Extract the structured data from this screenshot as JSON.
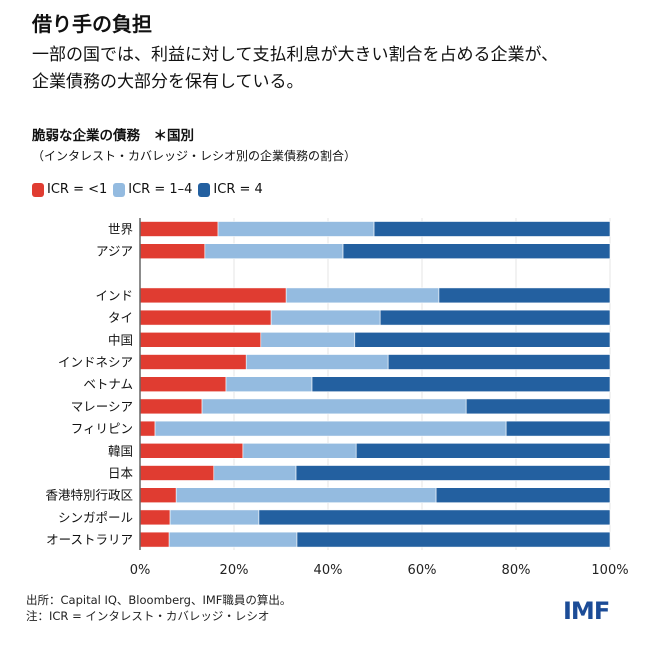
{
  "title": "借り手の負担",
  "subtitle_lines": [
    "一部の国では、利益に対して支払利息が大きい割合を占める企業が、",
    "企業債務の大部分を保有している。"
  ],
  "footer": {
    "source": "出所：Capital IQ、Bloomberg、IMF職員の算出。",
    "note": "注：ICR = インタレスト・カバレッジ・レシオ"
  },
  "logo_text": "IMF",
  "chart_data": {
    "type": "bar",
    "orientation": "horizontal",
    "stacked": true,
    "title": "脆弱な企業の債務　＊国別",
    "subtitle": "（インタレスト・カバレッジ・レシオ別の企業債務の割合）",
    "legend_position": "top-left",
    "grid": true,
    "xlim": [
      0,
      100
    ],
    "x_ticks": [
      "0%",
      "20%",
      "40%",
      "60%",
      "80%",
      "100%"
    ],
    "categories": [
      "世界",
      "アジア",
      "インド",
      "タイ",
      "中国",
      "インドネシア",
      "ベトナム",
      "マレーシア",
      "フィリピン",
      "韓国",
      "日本",
      "香港特別行政区",
      "シンガポール",
      "オーストラリア"
    ],
    "series": [
      {
        "name": "ICR = <1",
        "color": "#e03c31",
        "values": [
          16.6,
          13.8,
          31.1,
          27.9,
          25.7,
          22.6,
          18.3,
          13.2,
          3.2,
          21.9,
          15.7,
          7.7,
          6.4,
          6.2
        ]
      },
      {
        "name": "ICR = 1–4",
        "color": "#94bbe0",
        "values": [
          33.2,
          29.4,
          32.5,
          23.2,
          20.0,
          30.2,
          18.3,
          56.2,
          74.7,
          24.1,
          17.5,
          55.3,
          18.9,
          27.2
        ]
      },
      {
        "name": "ICR = 4",
        "color": "#2360a0",
        "values": [
          50.2,
          56.8,
          36.4,
          48.9,
          54.3,
          47.2,
          63.4,
          30.6,
          22.1,
          54.0,
          66.8,
          37.0,
          74.7,
          66.6
        ]
      }
    ]
  }
}
